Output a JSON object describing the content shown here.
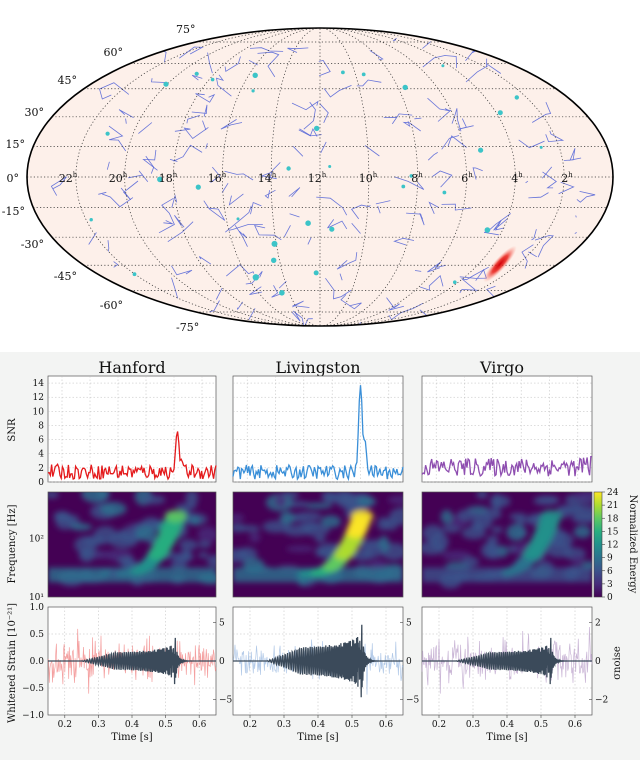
{
  "skymap": {
    "dec_labels": [
      "75°",
      "60°",
      "45°",
      "30°",
      "15°",
      "0°",
      "-15°",
      "-30°",
      "-45°",
      "-60°",
      "-75°"
    ],
    "ra_labels": [
      {
        "num": "22",
        "sup": "h"
      },
      {
        "num": "20",
        "sup": "h"
      },
      {
        "num": "18",
        "sup": "h"
      },
      {
        "num": "16",
        "sup": "h"
      },
      {
        "num": "14",
        "sup": "h"
      },
      {
        "num": "12",
        "sup": "h"
      },
      {
        "num": "10",
        "sup": "h"
      },
      {
        "num": "8",
        "sup": "h"
      },
      {
        "num": "6",
        "sup": "h"
      },
      {
        "num": "4",
        "sup": "h"
      },
      {
        "num": "2",
        "sup": "h"
      }
    ],
    "colors": {
      "background": "#fdf0ea",
      "constellation": "#4d5fd6",
      "star": "#3cc4c8",
      "localization": "#e8130c",
      "grid": "#333333"
    }
  },
  "chart_data": [
    {
      "type": "line",
      "panel": "snr",
      "ylabel": "SNR",
      "ylim": [
        0,
        15
      ],
      "yticks": [
        0,
        2,
        4,
        6,
        8,
        10,
        12,
        14
      ],
      "xlim": [
        0.15,
        0.65
      ],
      "grid": true,
      "columns": [
        {
          "title": "Hanford",
          "color": "#e41a1c",
          "peak_time": 0.535,
          "peak_snr": 7.2,
          "baseline": [
            0.4,
            2.5
          ]
        },
        {
          "title": "Livingston",
          "color": "#3a8fd8",
          "peak_time": 0.525,
          "peak_snr": 13.7,
          "baseline": [
            0.4,
            2.4
          ]
        },
        {
          "title": "Virgo",
          "color": "#8e4eb0",
          "peak_time": null,
          "peak_snr": 3.6,
          "baseline": [
            0.8,
            3.4
          ]
        }
      ]
    },
    {
      "type": "heatmap",
      "panel": "spectrogram",
      "ylabel": "Frequency [Hz]",
      "yticks": [
        "10²",
        "10¹"
      ],
      "colorbar_label": "Normalized Energy",
      "colorbar_ticks": [
        0,
        3,
        6,
        9,
        12,
        15,
        18,
        21,
        24
      ],
      "colormap": [
        "#440154",
        "#472d7b",
        "#3b528b",
        "#2c728e",
        "#21918c",
        "#28ae80",
        "#5ec962",
        "#addc30",
        "#fde725"
      ]
    },
    {
      "type": "line",
      "panel": "strain",
      "ylabel": "Whitened Strain [10⁻²¹]",
      "ylim": [
        -1.0,
        1.0
      ],
      "yticks": [
        "1.0",
        "0.5",
        "0.0",
        "−0.5",
        "−1.0"
      ],
      "xlabel": "Time [s]",
      "xlim": [
        0.15,
        0.65
      ],
      "xticks": [
        "0.2",
        "0.3",
        "0.4",
        "0.5",
        "0.6"
      ],
      "right_label": "σnoise",
      "right_ticks": [
        {
          "col": 0,
          "ticks": [
            {
              "v": 5,
              "label": "5"
            },
            {
              "v": 0,
              "label": "0"
            },
            {
              "v": -5,
              "label": "−5"
            }
          ],
          "range": [
            -7,
            7
          ]
        },
        {
          "col": 1,
          "ticks": [
            {
              "v": 5,
              "label": "5"
            },
            {
              "v": 0,
              "label": "0"
            },
            {
              "v": -5,
              "label": "−5"
            }
          ],
          "range": [
            -7,
            7
          ]
        },
        {
          "col": 2,
          "ticks": [
            {
              "v": 2,
              "label": "2"
            },
            {
              "v": 0,
              "label": "0"
            },
            {
              "v": -2,
              "label": "−2"
            }
          ],
          "range": [
            -2.8,
            2.8
          ]
        }
      ],
      "model_color": "#3b4a5a",
      "data_colors": [
        "#f08080",
        "#9ab8e0",
        "#b89ec8"
      ],
      "merger_time": 0.53,
      "model_amplitude": [
        0.35,
        0.55,
        0.35
      ]
    }
  ]
}
